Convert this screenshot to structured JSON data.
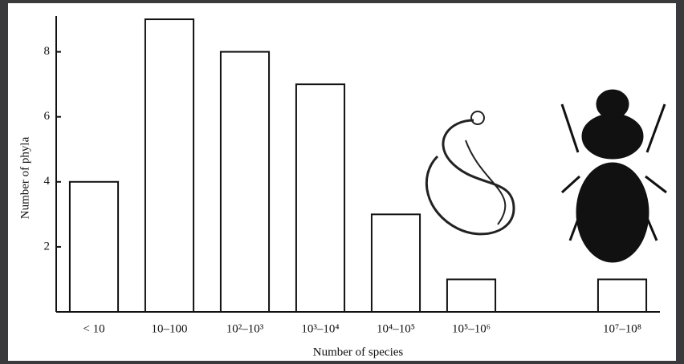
{
  "chart_data": {
    "type": "bar",
    "x_label": "Number of species",
    "y_label": "Number of phyla",
    "categories": [
      "< 10",
      "10–100",
      "10²–10³",
      "10³–10⁴",
      "10⁴–10⁵",
      "10⁵–10⁶",
      null,
      "10⁷–10⁸"
    ],
    "values": [
      4,
      9,
      8,
      7,
      3,
      1,
      null,
      1
    ],
    "color": "#ffffff",
    "ylim": [
      0,
      9.1
    ],
    "yticks": [
      2,
      4,
      6,
      8
    ],
    "grid": false
  }
}
